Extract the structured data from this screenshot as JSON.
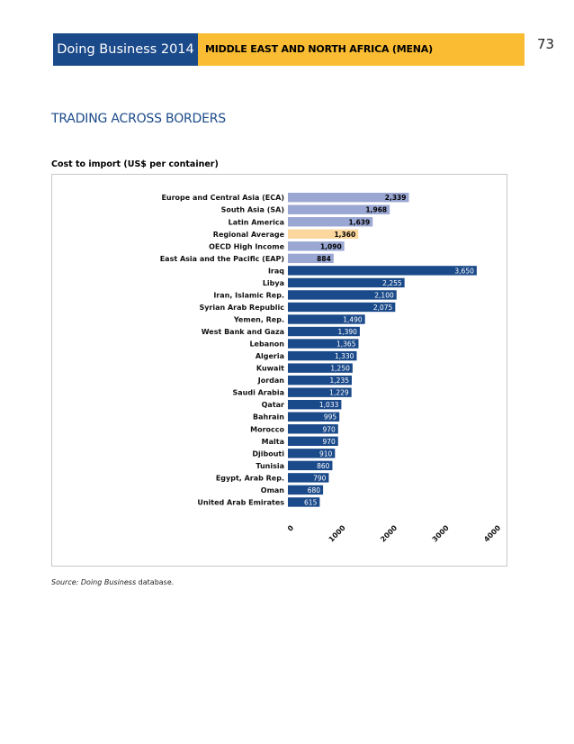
{
  "header": {
    "book_title": "Doing Business 2014",
    "region": "MIDDLE EAST AND NORTH AFRICA (MENA)",
    "page_number": "73"
  },
  "section_title": "TRADING ACROSS BORDERS",
  "source": {
    "prefix": "Source: ",
    "italic": "Doing Business",
    "suffix": " database."
  },
  "colors": {
    "header_blue": "#1b4a8a",
    "header_gold": "#f9bc32",
    "bar_region": "#9aa7d3",
    "bar_regional_average": "#fbd79e",
    "bar_economy": "#1b4a8a"
  },
  "chart_data": {
    "type": "bar",
    "orientation": "horizontal",
    "title": "Cost to import (US$ per container)",
    "xlim": [
      0,
      4000
    ],
    "xticks": [
      "0",
      "1000",
      "2000",
      "3000",
      "4000"
    ],
    "grid": false,
    "categories": [
      "Europe and Central Asia (ECA)",
      "South Asia (SA)",
      "Latin America",
      "Regional Average",
      "OECD High Income",
      "East Asia and the Pacific (EAP)",
      "Iraq",
      "Libya",
      "Iran, Islamic Rep.",
      "Syrian Arab Republic",
      "Yemen, Rep.",
      "West Bank and Gaza",
      "Lebanon",
      "Algeria",
      "Kuwait",
      "Jordan",
      "Saudi Arabia",
      "Qatar",
      "Bahrain",
      "Morocco",
      "Malta",
      "Djibouti",
      "Tunisia",
      "Egypt, Arab Rep.",
      "Oman",
      "United Arab Emirates"
    ],
    "values": [
      2339,
      1968,
      1639,
      1360,
      1090,
      884,
      3650,
      2255,
      2100,
      2075,
      1490,
      1390,
      1365,
      1330,
      1250,
      1235,
      1229,
      1033,
      995,
      970,
      970,
      910,
      860,
      790,
      680,
      615
    ],
    "value_labels": [
      "2,339",
      "1,968",
      "1,639",
      "1,360",
      "1,090",
      "884",
      "3,650",
      "2,255",
      "2,100",
      "2,075",
      "1,490",
      "1,390",
      "1,365",
      "1,330",
      "1,250",
      "1,235",
      "1,229",
      "1,033",
      "995",
      "970",
      "970",
      "910",
      "860",
      "790",
      "680",
      "615"
    ],
    "groups": [
      "region",
      "region",
      "region",
      "regional_average",
      "region",
      "region",
      "economy",
      "economy",
      "economy",
      "economy",
      "economy",
      "economy",
      "economy",
      "economy",
      "economy",
      "economy",
      "economy",
      "economy",
      "economy",
      "economy",
      "economy",
      "economy",
      "economy",
      "economy",
      "economy",
      "economy"
    ]
  }
}
